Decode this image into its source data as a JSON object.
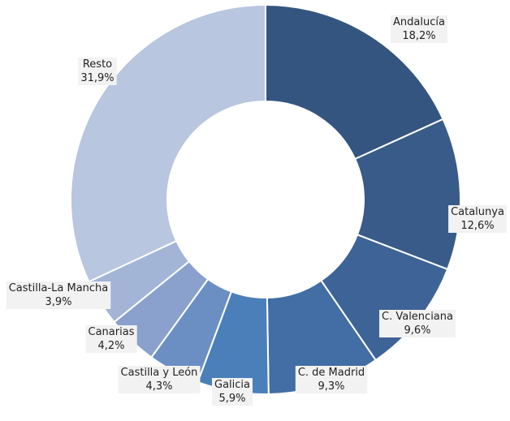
{
  "chart_data": {
    "type": "pie",
    "donut": true,
    "categories": [
      "Andalucía",
      "Catalunya",
      "C. Valenciana",
      "C. de Madrid",
      "Galicia",
      "Castilla y León",
      "Canarias",
      "Castilla-La Mancha",
      "Resto"
    ],
    "values": [
      18.2,
      12.6,
      9.6,
      9.3,
      5.9,
      4.3,
      4.2,
      3.9,
      31.9
    ],
    "value_labels": [
      "18,2%",
      "12,6%",
      "9,6%",
      "9,3%",
      "5,9%",
      "4,3%",
      "4,2%",
      "3,9%",
      "31,9%"
    ],
    "colors": [
      "#34557f",
      "#395b8a",
      "#3e6497",
      "#426ea5",
      "#4b7fba",
      "#6b8fc3",
      "#89a1cc",
      "#a3b5d7",
      "#b8c6df"
    ],
    "label_background": "#f2f2f2",
    "title": "",
    "legend": "none"
  }
}
